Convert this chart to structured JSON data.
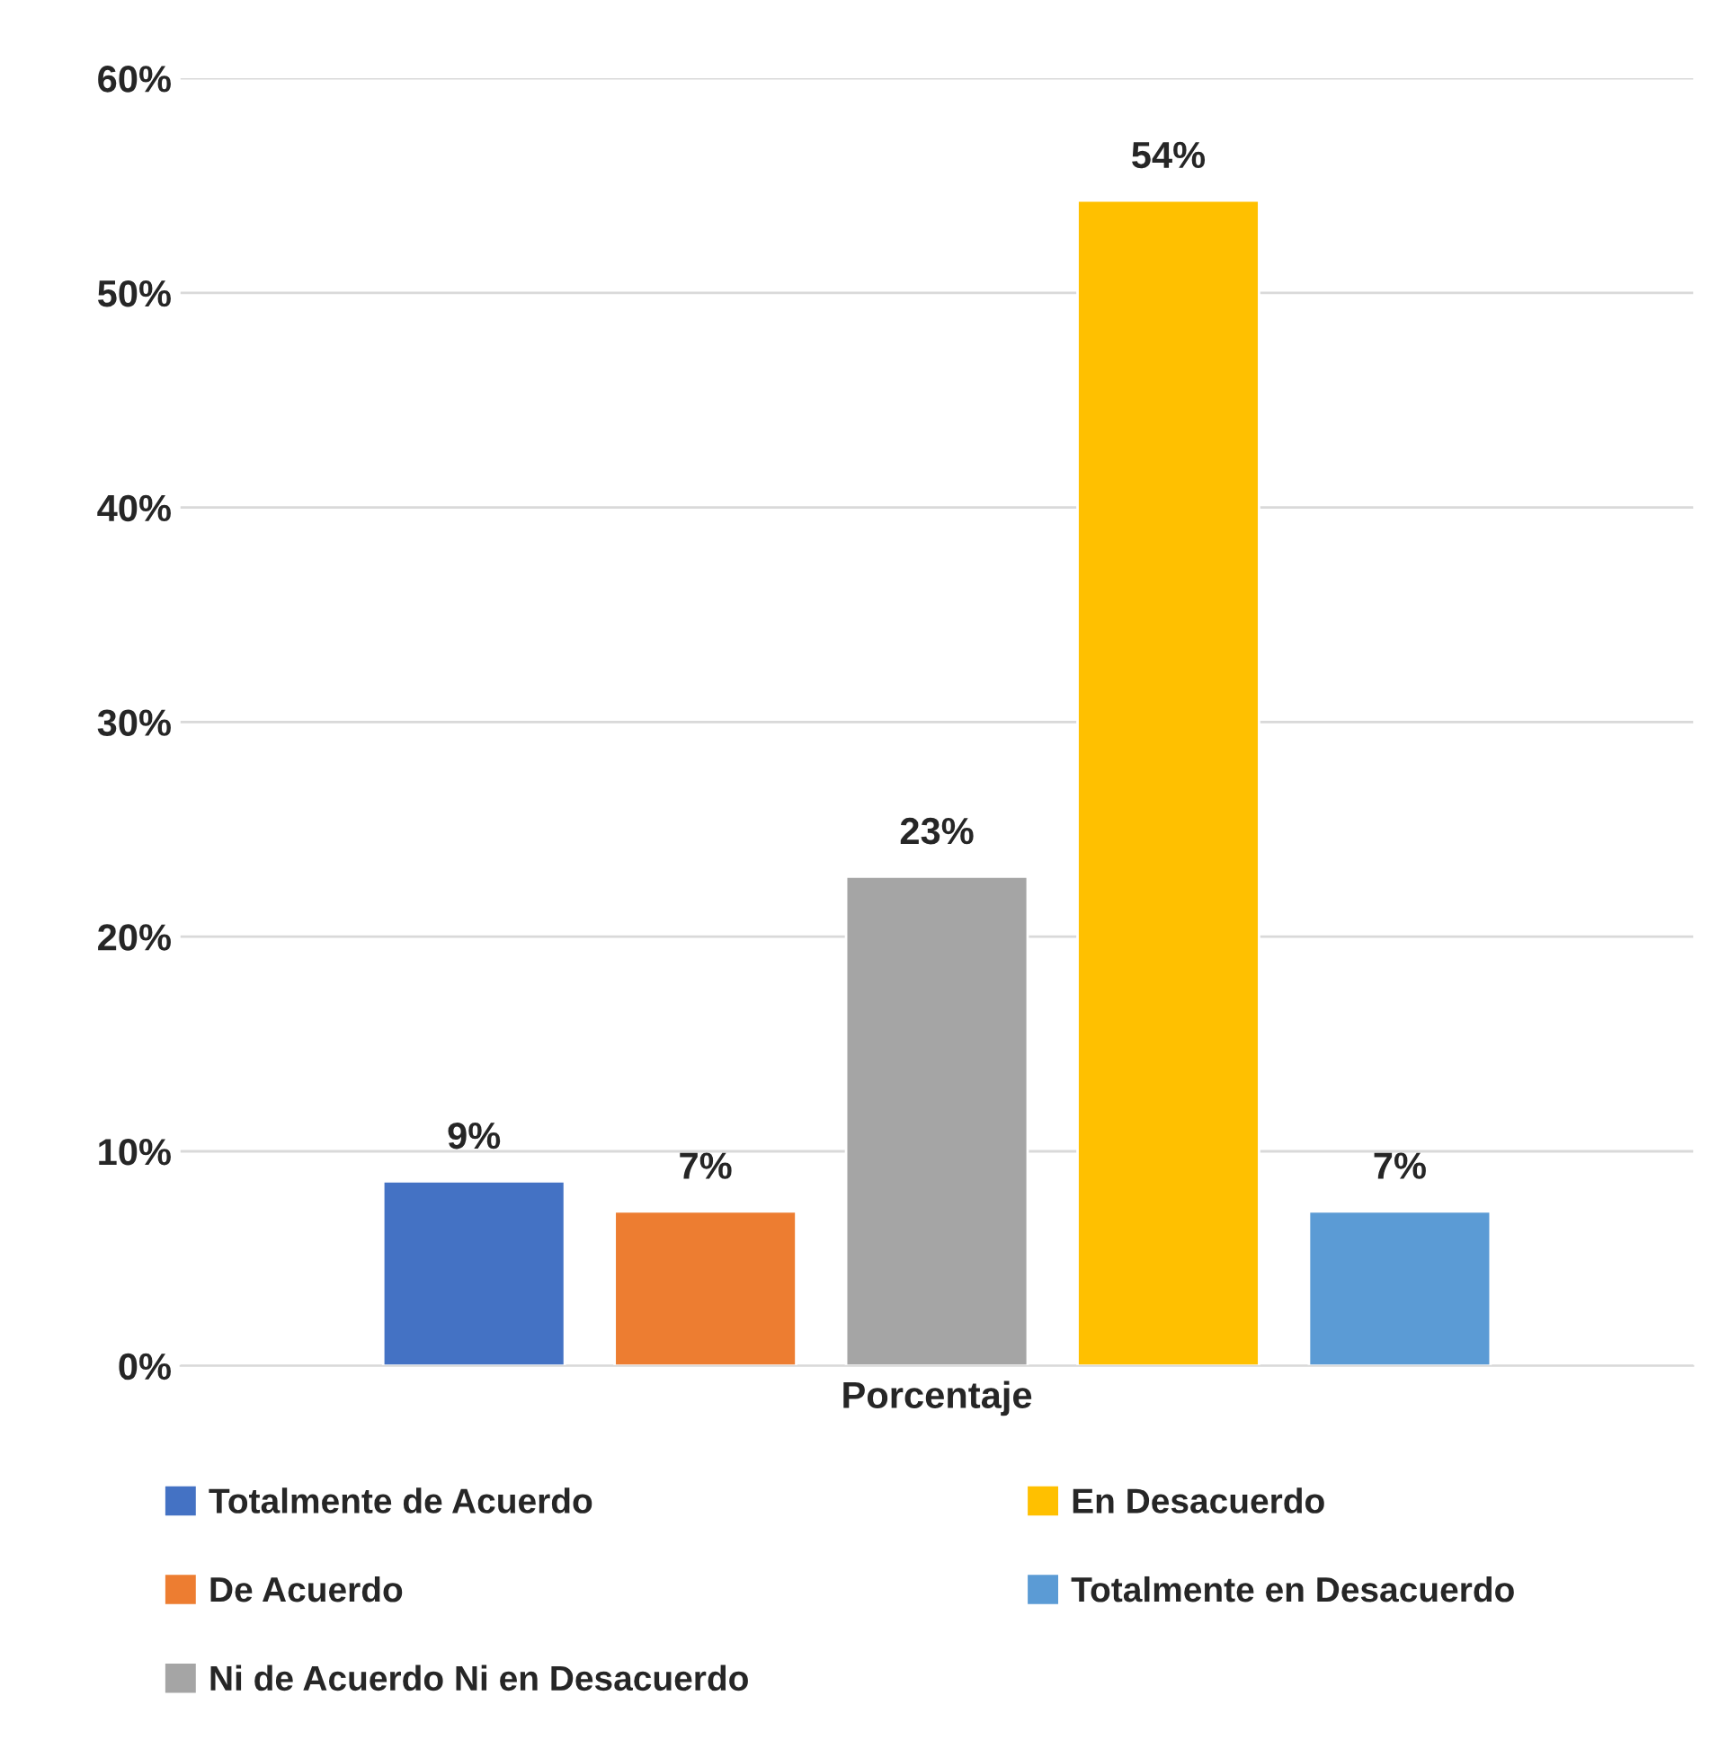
{
  "chart_data": {
    "type": "bar",
    "categories": [
      "Porcentaje"
    ],
    "series": [
      {
        "name": "Totalmente de Acuerdo",
        "color": "#4472c4",
        "values": [
          8.6
        ],
        "value_labels": [
          "9%"
        ]
      },
      {
        "name": "De Acuerdo",
        "color": "#ed7d31",
        "values": [
          7.2
        ],
        "value_labels": [
          "7%"
        ]
      },
      {
        "name": "Ni de Acuerdo Ni en Desacuerdo",
        "color": "#a5a5a5",
        "values": [
          22.8
        ],
        "value_labels": [
          "23%"
        ]
      },
      {
        "name": "En Desacuerdo",
        "color": "#ffc000",
        "values": [
          54.3
        ],
        "value_labels": [
          "54%"
        ]
      },
      {
        "name": "Totalmente en Desacuerdo",
        "color": "#5b9bd5",
        "values": [
          7.2
        ],
        "value_labels": [
          "7%"
        ]
      }
    ],
    "ylim": [
      0,
      60
    ],
    "yticks": [
      {
        "value": 0,
        "label": "0%"
      },
      {
        "value": 10,
        "label": "10%"
      },
      {
        "value": 20,
        "label": "20%"
      },
      {
        "value": 30,
        "label": "30%"
      },
      {
        "value": 40,
        "label": "40%"
      },
      {
        "value": 50,
        "label": "50%"
      },
      {
        "value": 60,
        "label": "60%"
      }
    ],
    "grid": "y",
    "legend": "bottom"
  }
}
